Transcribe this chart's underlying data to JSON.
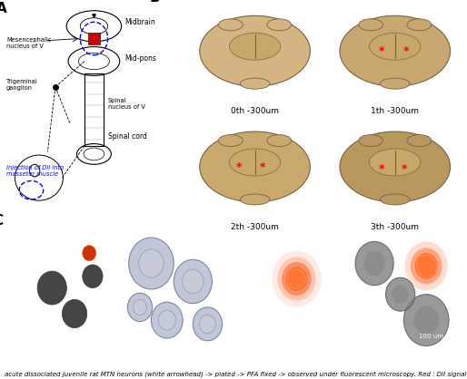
{
  "figure_width": 5.14,
  "figure_height": 4.18,
  "dpi": 100,
  "background_color": "#ffffff",
  "panel_A_label": "A",
  "panel_B_label": "B",
  "panel_C_label": "C",
  "label_fontsize": 11,
  "titles_B": [
    "0th -300um",
    "1th -300um",
    "2th -300um",
    "3th -300um"
  ],
  "title_fontsize_B": 6.5,
  "brain_colors": [
    "#d4b483",
    "#c8a870",
    "#c9a96e",
    "#b8985e"
  ],
  "has_asterisk": [
    false,
    true,
    true,
    true
  ],
  "asterisk_positions": [
    [],
    [
      [
        0.4,
        0.52
      ],
      [
        0.58,
        0.52
      ]
    ],
    [
      [
        0.38,
        0.52
      ],
      [
        0.56,
        0.52
      ]
    ],
    [
      [
        0.4,
        0.5
      ],
      [
        0.57,
        0.5
      ]
    ]
  ],
  "caption": "acute dissociated juvenile rat MTN neurons (white arrowhead) -> plated -> PFA fixed -> observed under fluorescent microscopy. Red : DiI signal",
  "caption_fontsize": 5.0
}
